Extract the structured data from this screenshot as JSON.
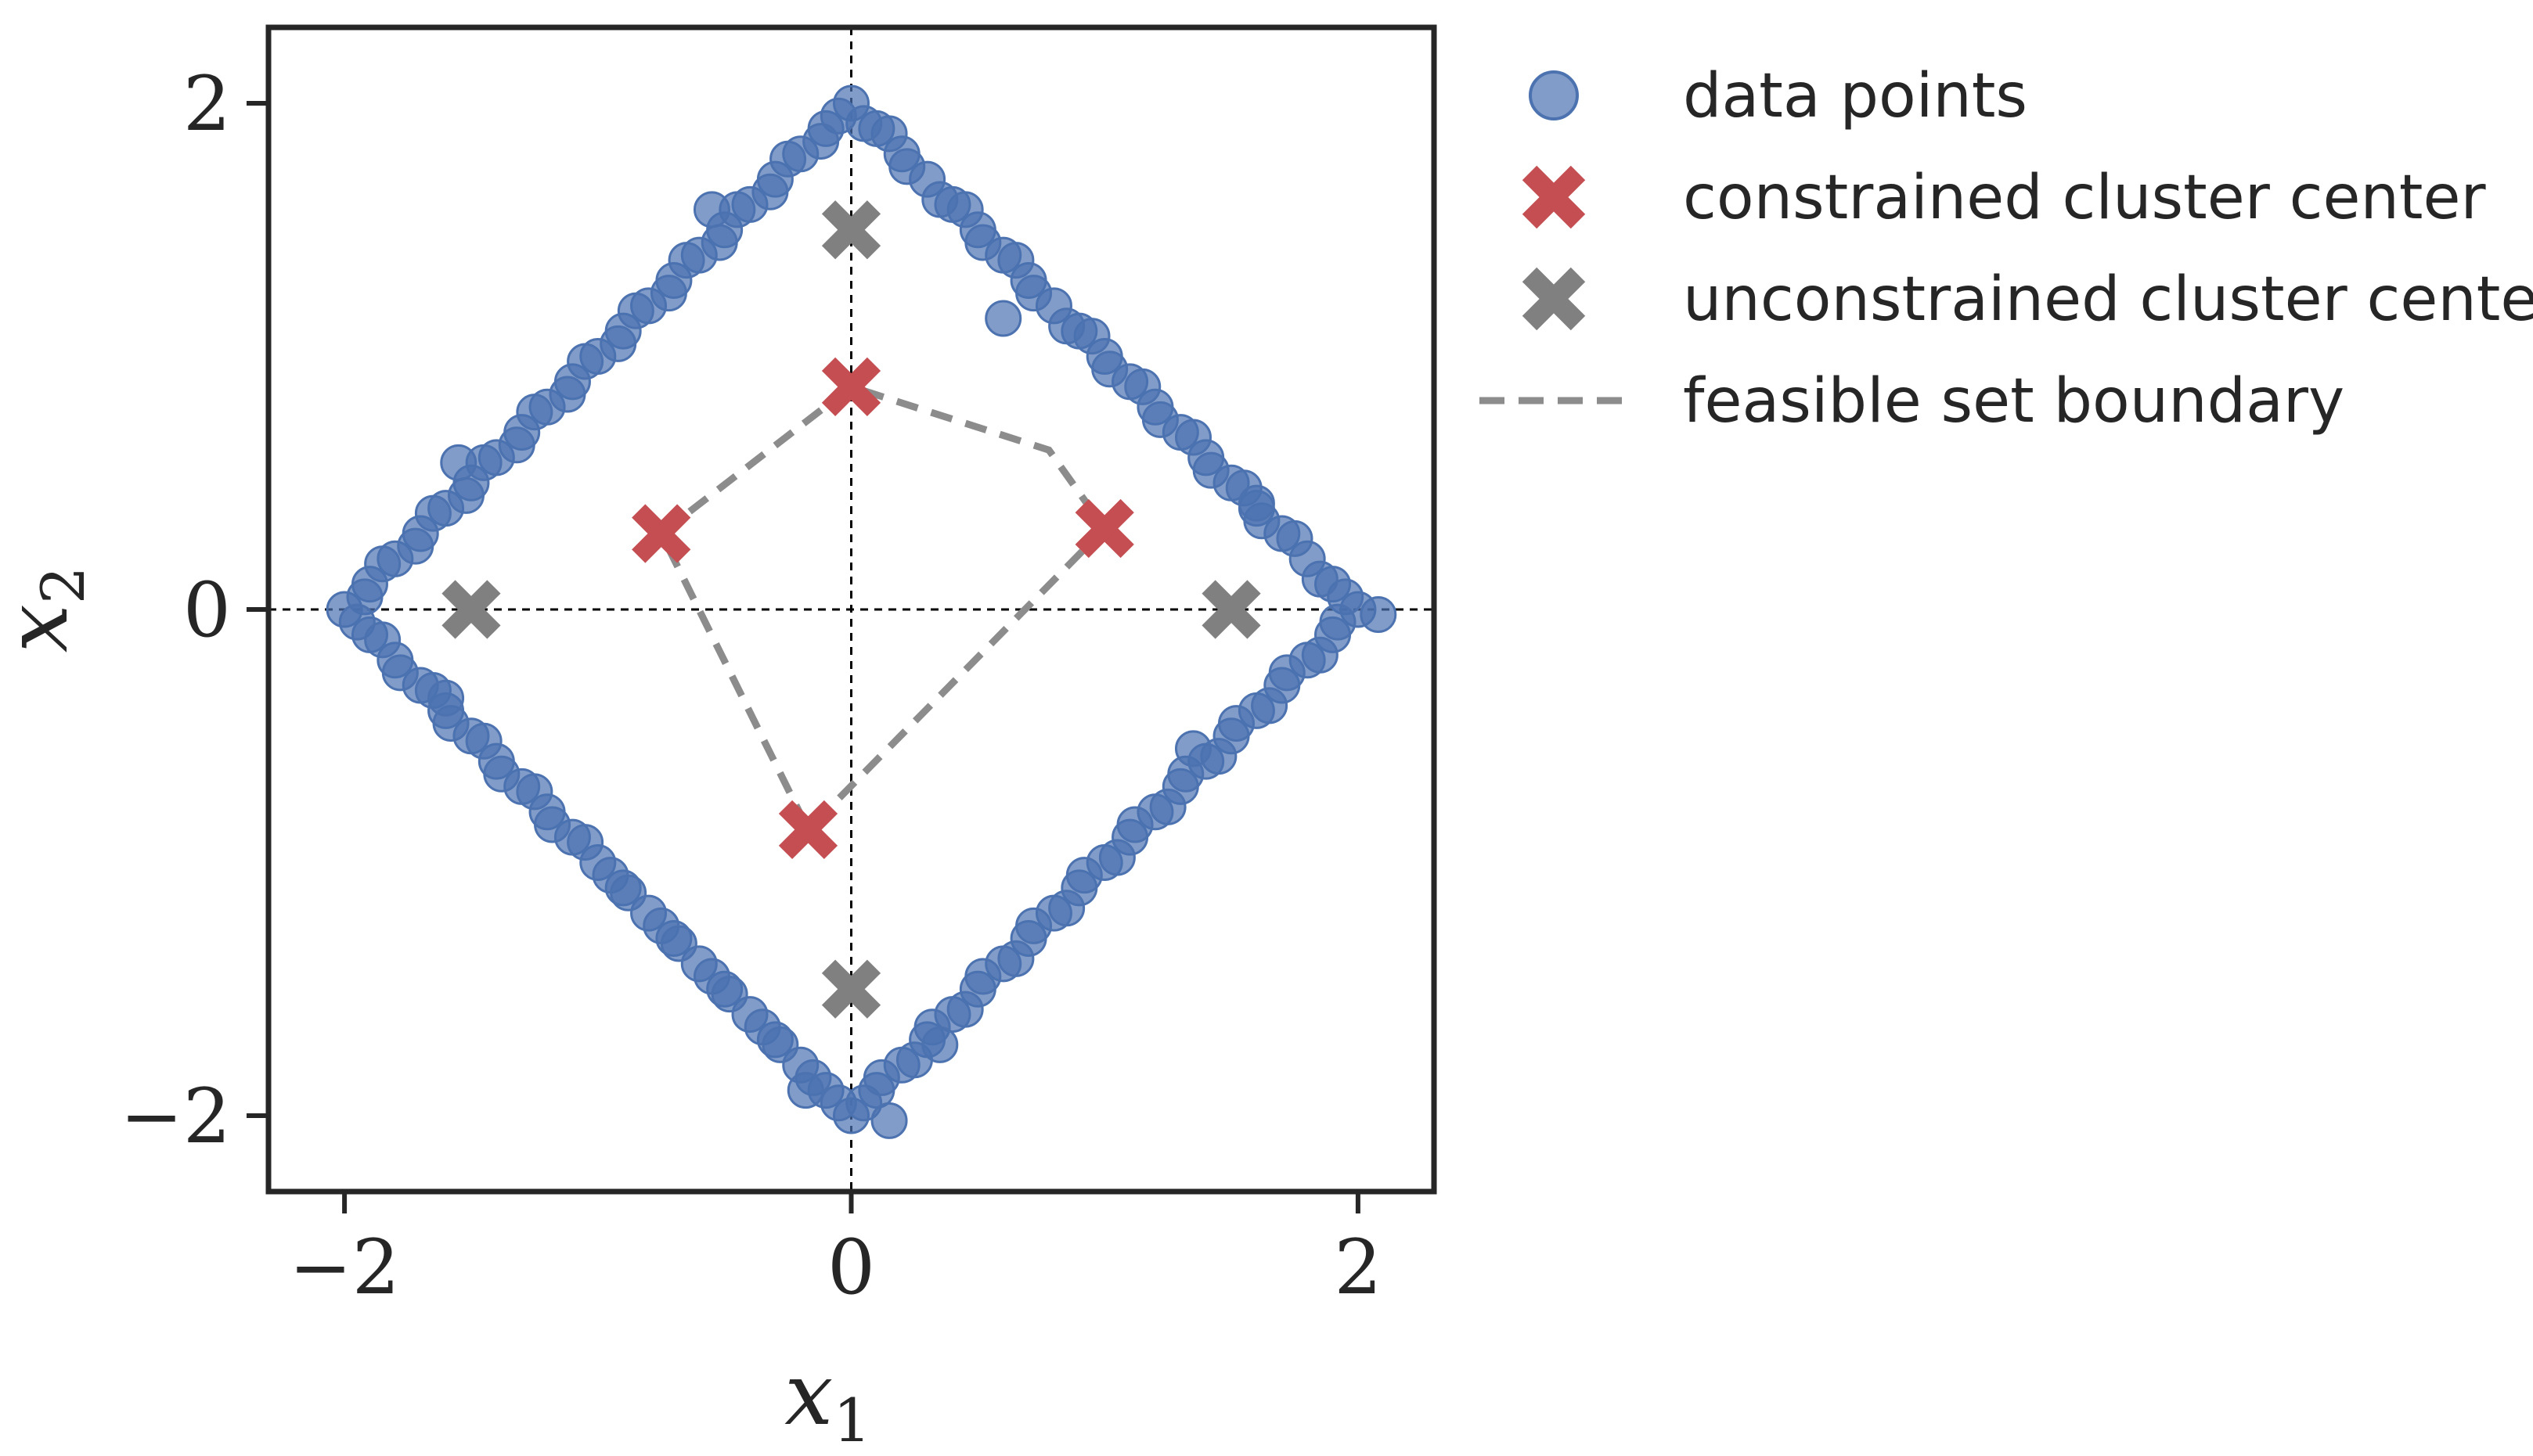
{
  "chart_data": {
    "type": "scatter",
    "title": "",
    "xlabel": "x",
    "xlabel_sub": "1",
    "ylabel": "x",
    "ylabel_sub": "2",
    "xlim": [
      -2.3,
      2.3
    ],
    "ylim": [
      -2.3,
      2.3
    ],
    "xticks": [
      -2,
      0,
      2
    ],
    "yticks": [
      -2,
      0,
      2
    ],
    "xtick_labels": [
      "−2",
      "0",
      "2"
    ],
    "ytick_labels": [
      "−2",
      "0",
      "2"
    ],
    "grid": false,
    "reference_lines": [
      {
        "axis": "x",
        "value": 0
      },
      {
        "axis": "y",
        "value": 0
      }
    ],
    "legend_position": "outside-right",
    "colors": {
      "data_points": "#4c72b0",
      "constrained": "#c44e52",
      "unconstrained": "#808080",
      "boundary": "#8c8c8c",
      "axes": "#262626"
    },
    "series": [
      {
        "name": "data points",
        "kind": "scatter",
        "points": [
          [
            2.0,
            0.0
          ],
          [
            1.9,
            0.1
          ],
          [
            1.8,
            0.2
          ],
          [
            1.7,
            0.3
          ],
          [
            1.6,
            0.4
          ],
          [
            1.5,
            0.5
          ],
          [
            1.4,
            0.6
          ],
          [
            1.3,
            0.7
          ],
          [
            1.2,
            0.8
          ],
          [
            1.1,
            0.9
          ],
          [
            1.0,
            1.0
          ],
          [
            0.9,
            1.1
          ],
          [
            0.8,
            1.2
          ],
          [
            0.7,
            1.3
          ],
          [
            0.6,
            1.4
          ],
          [
            0.5,
            1.5
          ],
          [
            0.4,
            1.6
          ],
          [
            0.3,
            1.7
          ],
          [
            0.2,
            1.8
          ],
          [
            0.1,
            1.9
          ],
          [
            0.0,
            2.0
          ],
          [
            -0.1,
            1.9
          ],
          [
            -0.2,
            1.8
          ],
          [
            -0.3,
            1.7
          ],
          [
            -0.4,
            1.6
          ],
          [
            -0.5,
            1.5
          ],
          [
            -0.6,
            1.4
          ],
          [
            -0.7,
            1.3
          ],
          [
            -0.8,
            1.2
          ],
          [
            -0.9,
            1.1
          ],
          [
            -1.0,
            1.0
          ],
          [
            -1.1,
            0.9
          ],
          [
            -1.2,
            0.8
          ],
          [
            -1.3,
            0.7
          ],
          [
            -1.4,
            0.6
          ],
          [
            -1.5,
            0.5
          ],
          [
            -1.6,
            0.4
          ],
          [
            -1.7,
            0.3
          ],
          [
            -1.8,
            0.2
          ],
          [
            -1.9,
            0.1
          ],
          [
            -2.0,
            0.0
          ],
          [
            -1.9,
            -0.1
          ],
          [
            -1.8,
            -0.2
          ],
          [
            -1.7,
            -0.3
          ],
          [
            -1.6,
            -0.4
          ],
          [
            -1.5,
            -0.5
          ],
          [
            -1.4,
            -0.6
          ],
          [
            -1.3,
            -0.7
          ],
          [
            -1.2,
            -0.8
          ],
          [
            -1.1,
            -0.9
          ],
          [
            -1.0,
            -1.0
          ],
          [
            -0.9,
            -1.1
          ],
          [
            -0.8,
            -1.2
          ],
          [
            -0.7,
            -1.3
          ],
          [
            -0.6,
            -1.4
          ],
          [
            -0.5,
            -1.5
          ],
          [
            -0.4,
            -1.6
          ],
          [
            -0.3,
            -1.7
          ],
          [
            -0.2,
            -1.8
          ],
          [
            -0.1,
            -1.9
          ],
          [
            0.0,
            -2.0
          ],
          [
            0.1,
            -1.9
          ],
          [
            0.2,
            -1.8
          ],
          [
            0.3,
            -1.7
          ],
          [
            0.4,
            -1.6
          ],
          [
            0.5,
            -1.5
          ],
          [
            0.6,
            -1.4
          ],
          [
            0.7,
            -1.3
          ],
          [
            0.8,
            -1.2
          ],
          [
            0.9,
            -1.1
          ],
          [
            1.0,
            -1.0
          ],
          [
            1.1,
            -0.9
          ],
          [
            1.2,
            -0.8
          ],
          [
            1.3,
            -0.7
          ],
          [
            1.4,
            -0.6
          ],
          [
            1.5,
            -0.5
          ],
          [
            1.6,
            -0.4
          ],
          [
            1.7,
            -0.3
          ],
          [
            1.8,
            -0.2
          ],
          [
            1.9,
            -0.1
          ],
          [
            1.95,
            0.05
          ],
          [
            1.85,
            0.12
          ],
          [
            1.75,
            0.28
          ],
          [
            1.62,
            0.35
          ],
          [
            1.55,
            0.48
          ],
          [
            1.42,
            0.55
          ],
          [
            1.35,
            0.68
          ],
          [
            1.22,
            0.75
          ],
          [
            1.15,
            0.88
          ],
          [
            1.02,
            0.95
          ],
          [
            0.95,
            1.08
          ],
          [
            0.85,
            1.12
          ],
          [
            0.72,
            1.25
          ],
          [
            0.65,
            1.38
          ],
          [
            0.52,
            1.45
          ],
          [
            0.45,
            1.58
          ],
          [
            0.35,
            1.62
          ],
          [
            0.22,
            1.75
          ],
          [
            0.15,
            1.88
          ],
          [
            0.05,
            1.92
          ],
          [
            -0.05,
            1.95
          ],
          [
            -0.12,
            1.85
          ],
          [
            -0.25,
            1.78
          ],
          [
            -0.32,
            1.65
          ],
          [
            -0.45,
            1.58
          ],
          [
            -0.52,
            1.45
          ],
          [
            -0.65,
            1.38
          ],
          [
            -0.72,
            1.25
          ],
          [
            -0.85,
            1.18
          ],
          [
            -0.92,
            1.05
          ],
          [
            -1.05,
            0.98
          ],
          [
            -1.12,
            0.85
          ],
          [
            -1.25,
            0.78
          ],
          [
            -1.32,
            0.65
          ],
          [
            -1.45,
            0.58
          ],
          [
            -1.52,
            0.45
          ],
          [
            -1.65,
            0.38
          ],
          [
            -1.72,
            0.25
          ],
          [
            -1.85,
            0.18
          ],
          [
            -1.92,
            0.05
          ],
          [
            -1.95,
            -0.05
          ],
          [
            -1.85,
            -0.12
          ],
          [
            -1.78,
            -0.25
          ],
          [
            -1.65,
            -0.32
          ],
          [
            -1.58,
            -0.45
          ],
          [
            -1.45,
            -0.52
          ],
          [
            -1.38,
            -0.65
          ],
          [
            -1.25,
            -0.72
          ],
          [
            -1.18,
            -0.85
          ],
          [
            -1.05,
            -0.92
          ],
          [
            -0.95,
            -1.05
          ],
          [
            -0.88,
            -1.12
          ],
          [
            -0.75,
            -1.25
          ],
          [
            -0.68,
            -1.32
          ],
          [
            -0.55,
            -1.45
          ],
          [
            -0.48,
            -1.52
          ],
          [
            -0.35,
            -1.65
          ],
          [
            -0.28,
            -1.72
          ],
          [
            -0.15,
            -1.85
          ],
          [
            -0.05,
            -1.95
          ],
          [
            0.05,
            -1.95
          ],
          [
            0.12,
            -1.85
          ],
          [
            0.25,
            -1.78
          ],
          [
            0.32,
            -1.65
          ],
          [
            0.45,
            -1.58
          ],
          [
            0.52,
            -1.45
          ],
          [
            0.65,
            -1.38
          ],
          [
            0.72,
            -1.25
          ],
          [
            0.85,
            -1.18
          ],
          [
            0.92,
            -1.05
          ],
          [
            1.05,
            -0.98
          ],
          [
            1.12,
            -0.85
          ],
          [
            1.25,
            -0.78
          ],
          [
            1.32,
            -0.65
          ],
          [
            1.45,
            -0.58
          ],
          [
            1.52,
            -0.45
          ],
          [
            1.65,
            -0.38
          ],
          [
            1.72,
            -0.25
          ],
          [
            1.85,
            -0.18
          ],
          [
            1.92,
            -0.05
          ],
          [
            2.08,
            -0.02
          ],
          [
            -0.18,
            -1.9
          ],
          [
            0.15,
            -2.02
          ],
          [
            0.6,
            1.15
          ],
          [
            1.35,
            -0.55
          ],
          [
            -1.6,
            -0.35
          ],
          [
            -1.55,
            0.58
          ],
          [
            1.6,
            0.42
          ],
          [
            -0.55,
            1.58
          ],
          [
            0.35,
            -1.72
          ]
        ]
      },
      {
        "name": "constrained cluster center",
        "kind": "marker",
        "points": [
          [
            -0.75,
            0.3
          ],
          [
            0.0,
            0.88
          ],
          [
            1.0,
            0.32
          ],
          [
            -0.17,
            -0.87
          ]
        ]
      },
      {
        "name": "unconstrained cluster center",
        "kind": "marker",
        "points": [
          [
            0.0,
            1.5
          ],
          [
            -1.5,
            0.0
          ],
          [
            1.5,
            0.0
          ],
          [
            0.0,
            -1.5
          ]
        ]
      },
      {
        "name": "feasible set boundary",
        "kind": "line",
        "points": [
          [
            -0.75,
            0.3
          ],
          [
            0.0,
            0.88
          ],
          [
            0.78,
            0.63
          ],
          [
            1.0,
            0.32
          ],
          [
            -0.17,
            -0.87
          ],
          [
            -0.75,
            0.3
          ]
        ]
      }
    ]
  }
}
